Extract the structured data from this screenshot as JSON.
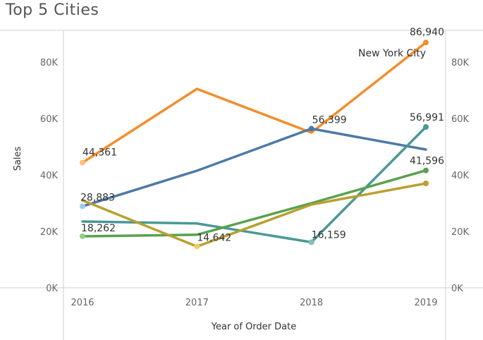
{
  "page": {
    "title": "Top  5 Cities"
  },
  "chart_data": {
    "type": "line",
    "x": [
      "2016",
      "2017",
      "2018",
      "2019"
    ],
    "xlabel": "Year of Order Date",
    "ylabel": "Sales",
    "ylim": [
      0,
      90000
    ],
    "yticks": [
      0,
      20000,
      40000,
      60000,
      80000
    ],
    "ytick_labels": [
      "0K",
      "20K",
      "40K",
      "60K",
      "80K"
    ],
    "grid": false,
    "dual_axis": true,
    "series": [
      {
        "name": "New York City",
        "color": "#f28e2b",
        "values": [
          44361,
          70500,
          55000,
          86940
        ],
        "labels": [
          "44,361",
          "",
          "",
          "86,940"
        ],
        "point_colors": [
          "#ffbe7d",
          null,
          null,
          "#f28e2b"
        ]
      },
      {
        "name": "",
        "color": "#4e79a7",
        "values": [
          28883,
          41500,
          56399,
          49000
        ],
        "labels": [
          "28,883",
          "",
          "56,399",
          ""
        ],
        "point_colors": [
          "#a0cbe8",
          null,
          "#4e79a7",
          null
        ]
      },
      {
        "name": "",
        "color": "#499894",
        "values": [
          23500,
          22800,
          16159,
          56991
        ],
        "labels": [
          "",
          "",
          "16,159",
          "56,991"
        ],
        "point_colors": [
          null,
          null,
          "#86bcb6",
          "#499894"
        ]
      },
      {
        "name": "",
        "color": "#59a14f",
        "values": [
          18262,
          18800,
          30000,
          41596
        ],
        "labels": [
          "18,262",
          "",
          "",
          "41,596"
        ],
        "point_colors": [
          "#8cd17d",
          null,
          null,
          "#59a14f"
        ]
      },
      {
        "name": "",
        "color": "#b9a030",
        "values": [
          31000,
          14642,
          29500,
          37000
        ],
        "labels": [
          "",
          "14,642",
          "",
          ""
        ],
        "point_colors": [
          null,
          "#f1ce63",
          null,
          "#b9a030"
        ]
      }
    ],
    "annotations": [
      {
        "text": "New York City",
        "series": 0,
        "at": "2019"
      }
    ]
  }
}
